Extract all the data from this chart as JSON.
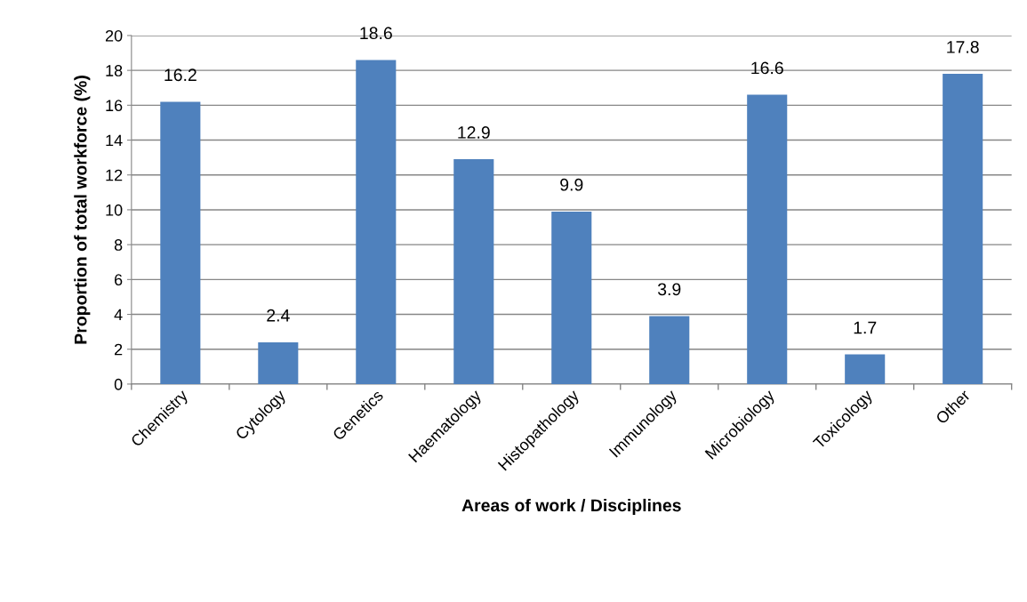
{
  "chart_data": {
    "type": "bar",
    "xlabel": "Areas of work / Disciplines",
    "ylabel": "Proportion of total workforce (%)",
    "categories": [
      "Chemistry",
      "Cytology",
      "Genetics",
      "Haematology",
      "Histopathology",
      "Immunology",
      "Microbiology",
      "Toxicology",
      "Other"
    ],
    "values": [
      16.2,
      2.4,
      18.6,
      12.9,
      9.9,
      3.9,
      16.6,
      1.7,
      17.8
    ],
    "color": "#4f81bd",
    "ylim": [
      0,
      20
    ],
    "yticks": [
      0,
      2,
      4,
      6,
      8,
      10,
      12,
      14,
      16,
      18,
      20
    ],
    "grid": "y",
    "data_labels": true,
    "legend": false
  }
}
